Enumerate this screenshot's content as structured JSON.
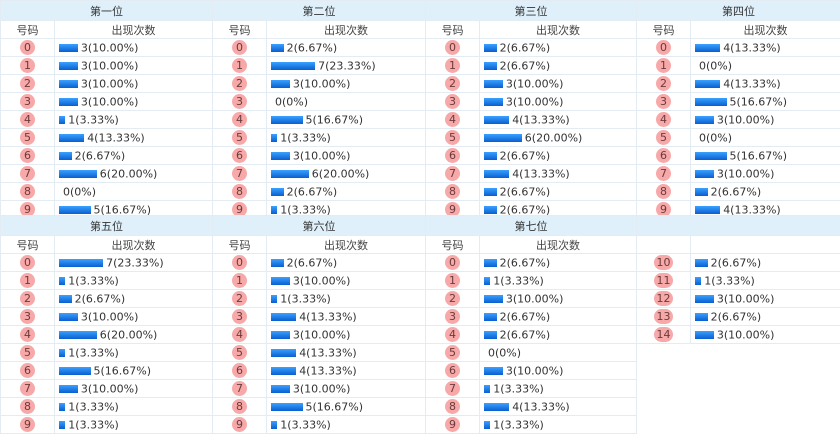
{
  "headers": {
    "number": "号码",
    "count": "出现次数"
  },
  "positions": [
    {
      "title": "第一位",
      "rows": [
        {
          "n": "0",
          "c": 3,
          "t": "3(10.00%)"
        },
        {
          "n": "1",
          "c": 3,
          "t": "3(10.00%)"
        },
        {
          "n": "2",
          "c": 3,
          "t": "3(10.00%)"
        },
        {
          "n": "3",
          "c": 3,
          "t": "3(10.00%)"
        },
        {
          "n": "4",
          "c": 1,
          "t": "1(3.33%)"
        },
        {
          "n": "5",
          "c": 4,
          "t": "4(13.33%)"
        },
        {
          "n": "6",
          "c": 2,
          "t": "2(6.67%)"
        },
        {
          "n": "7",
          "c": 6,
          "t": "6(20.00%)"
        },
        {
          "n": "8",
          "c": 0,
          "t": "0(0%)"
        },
        {
          "n": "9",
          "c": 5,
          "t": "5(16.67%)"
        }
      ]
    },
    {
      "title": "第二位",
      "rows": [
        {
          "n": "0",
          "c": 2,
          "t": "2(6.67%)"
        },
        {
          "n": "1",
          "c": 7,
          "t": "7(23.33%)"
        },
        {
          "n": "2",
          "c": 3,
          "t": "3(10.00%)"
        },
        {
          "n": "3",
          "c": 0,
          "t": "0(0%)"
        },
        {
          "n": "4",
          "c": 5,
          "t": "5(16.67%)"
        },
        {
          "n": "5",
          "c": 1,
          "t": "1(3.33%)"
        },
        {
          "n": "6",
          "c": 3,
          "t": "3(10.00%)"
        },
        {
          "n": "7",
          "c": 6,
          "t": "6(20.00%)"
        },
        {
          "n": "8",
          "c": 2,
          "t": "2(6.67%)"
        },
        {
          "n": "9",
          "c": 1,
          "t": "1(3.33%)"
        }
      ]
    },
    {
      "title": "第三位",
      "rows": [
        {
          "n": "0",
          "c": 2,
          "t": "2(6.67%)"
        },
        {
          "n": "1",
          "c": 2,
          "t": "2(6.67%)"
        },
        {
          "n": "2",
          "c": 3,
          "t": "3(10.00%)"
        },
        {
          "n": "3",
          "c": 3,
          "t": "3(10.00%)"
        },
        {
          "n": "4",
          "c": 4,
          "t": "4(13.33%)"
        },
        {
          "n": "5",
          "c": 6,
          "t": "6(20.00%)"
        },
        {
          "n": "6",
          "c": 2,
          "t": "2(6.67%)"
        },
        {
          "n": "7",
          "c": 4,
          "t": "4(13.33%)"
        },
        {
          "n": "8",
          "c": 2,
          "t": "2(6.67%)"
        },
        {
          "n": "9",
          "c": 2,
          "t": "2(6.67%)"
        }
      ]
    },
    {
      "title": "第四位",
      "rows": [
        {
          "n": "0",
          "c": 4,
          "t": "4(13.33%)"
        },
        {
          "n": "1",
          "c": 0,
          "t": "0(0%)"
        },
        {
          "n": "2",
          "c": 4,
          "t": "4(13.33%)"
        },
        {
          "n": "3",
          "c": 5,
          "t": "5(16.67%)"
        },
        {
          "n": "4",
          "c": 3,
          "t": "3(10.00%)"
        },
        {
          "n": "5",
          "c": 0,
          "t": "0(0%)"
        },
        {
          "n": "6",
          "c": 5,
          "t": "5(16.67%)"
        },
        {
          "n": "7",
          "c": 3,
          "t": "3(10.00%)"
        },
        {
          "n": "8",
          "c": 2,
          "t": "2(6.67%)"
        },
        {
          "n": "9",
          "c": 4,
          "t": "4(13.33%)"
        }
      ]
    },
    {
      "title": "第五位",
      "rows": [
        {
          "n": "0",
          "c": 7,
          "t": "7(23.33%)"
        },
        {
          "n": "1",
          "c": 1,
          "t": "1(3.33%)"
        },
        {
          "n": "2",
          "c": 2,
          "t": "2(6.67%)"
        },
        {
          "n": "3",
          "c": 3,
          "t": "3(10.00%)"
        },
        {
          "n": "4",
          "c": 6,
          "t": "6(20.00%)"
        },
        {
          "n": "5",
          "c": 1,
          "t": "1(3.33%)"
        },
        {
          "n": "6",
          "c": 5,
          "t": "5(16.67%)"
        },
        {
          "n": "7",
          "c": 3,
          "t": "3(10.00%)"
        },
        {
          "n": "8",
          "c": 1,
          "t": "1(3.33%)"
        },
        {
          "n": "9",
          "c": 1,
          "t": "1(3.33%)"
        }
      ]
    },
    {
      "title": "第六位",
      "rows": [
        {
          "n": "0",
          "c": 2,
          "t": "2(6.67%)"
        },
        {
          "n": "1",
          "c": 3,
          "t": "3(10.00%)"
        },
        {
          "n": "2",
          "c": 1,
          "t": "1(3.33%)"
        },
        {
          "n": "3",
          "c": 4,
          "t": "4(13.33%)"
        },
        {
          "n": "4",
          "c": 3,
          "t": "3(10.00%)"
        },
        {
          "n": "5",
          "c": 4,
          "t": "4(13.33%)"
        },
        {
          "n": "6",
          "c": 4,
          "t": "4(13.33%)"
        },
        {
          "n": "7",
          "c": 3,
          "t": "3(10.00%)"
        },
        {
          "n": "8",
          "c": 5,
          "t": "5(16.67%)"
        },
        {
          "n": "9",
          "c": 1,
          "t": "1(3.33%)"
        }
      ]
    },
    {
      "title": "第七位",
      "rows": [
        {
          "n": "0",
          "c": 2,
          "t": "2(6.67%)"
        },
        {
          "n": "1",
          "c": 1,
          "t": "1(3.33%)"
        },
        {
          "n": "2",
          "c": 3,
          "t": "3(10.00%)"
        },
        {
          "n": "3",
          "c": 2,
          "t": "2(6.67%)"
        },
        {
          "n": "4",
          "c": 2,
          "t": "2(6.67%)"
        },
        {
          "n": "5",
          "c": 0,
          "t": "0(0%)"
        },
        {
          "n": "6",
          "c": 3,
          "t": "3(10.00%)"
        },
        {
          "n": "7",
          "c": 1,
          "t": "1(3.33%)"
        },
        {
          "n": "8",
          "c": 4,
          "t": "4(13.33%)"
        },
        {
          "n": "9",
          "c": 1,
          "t": "1(3.33%)"
        }
      ]
    },
    {
      "title": "",
      "rows": [
        {
          "n": "10",
          "c": 2,
          "t": "2(6.67%)"
        },
        {
          "n": "11",
          "c": 1,
          "t": "1(3.33%)"
        },
        {
          "n": "12",
          "c": 3,
          "t": "3(10.00%)"
        },
        {
          "n": "13",
          "c": 2,
          "t": "2(6.67%)"
        },
        {
          "n": "14",
          "c": 3,
          "t": "3(10.00%)"
        }
      ]
    }
  ],
  "colors": {
    "header_bg": "#dff0fb",
    "ball_bg": "#f7a8a8",
    "bar_top": "#3aa0ff",
    "bar_bottom": "#0a5fd0",
    "border": "#e3ebf3"
  }
}
